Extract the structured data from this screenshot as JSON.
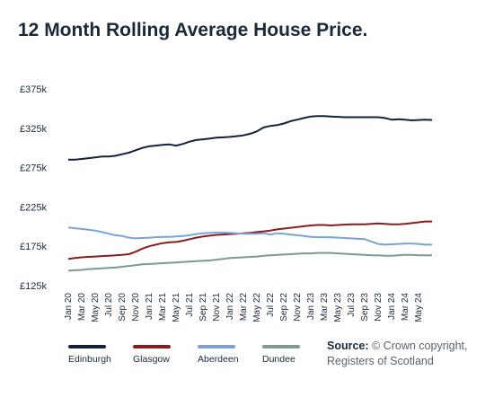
{
  "chart_data": {
    "type": "line",
    "title": "12 Month Rolling Average House Price.",
    "xlabel": "",
    "ylabel": "",
    "ylim": [
      125000,
      375000
    ],
    "yticks": [
      375000,
      325000,
      275000,
      225000,
      175000,
      125000
    ],
    "ytick_labels": [
      "£375k",
      "£325k",
      "£275k",
      "£225k",
      "£175k",
      "£125k"
    ],
    "x": [
      "Jan 20",
      "Feb 20",
      "Mar 20",
      "Apr 20",
      "May 20",
      "Jun 20",
      "Jul 20",
      "Aug 20",
      "Sep 20",
      "Oct 20",
      "Nov 20",
      "Dec 20",
      "Jan 21",
      "Feb 21",
      "Mar 21",
      "Apr 21",
      "May 21",
      "Jun 21",
      "Jul 21",
      "Aug 21",
      "Sep 21",
      "Oct 21",
      "Nov 21",
      "Dec 21",
      "Jan 22",
      "Feb 22",
      "Mar 22",
      "Apr 22",
      "May 22",
      "Jun 22",
      "Jul 22",
      "Aug 22",
      "Sep 22",
      "Oct 22",
      "Nov 22",
      "Dec 22",
      "Jan 23",
      "Feb 23",
      "Mar 23",
      "Apr 23",
      "May 23",
      "Jun 23",
      "Jul 23",
      "Aug 23",
      "Sep 23",
      "Oct 23",
      "Nov 23",
      "Dec 23",
      "Jan 24",
      "Feb 24",
      "Mar 24",
      "Apr 24",
      "May 24",
      "Jun 24",
      "Jul 24"
    ],
    "xtick_labels": [
      "Jan 20",
      "Mar 20",
      "May 20",
      "Jul 20",
      "Sep 20",
      "Nov 20",
      "Jan 21",
      "Mar 21",
      "May 21",
      "Jul 21",
      "Sep 21",
      "Nov 21",
      "Jan 22",
      "Mar 22",
      "May 22",
      "Jul 22",
      "Sep 22",
      "Nov 22",
      "Jan 23",
      "Mar 23",
      "May 23",
      "Jul 23",
      "Sep 23",
      "Nov 23",
      "Jan 24",
      "Mar 24",
      "May 24"
    ],
    "grid": false,
    "legend_position": "bottom-left",
    "series": [
      {
        "name": "Edinburgh",
        "color": "#14213d",
        "values": [
          285000,
          285000,
          286000,
          287000,
          288000,
          289000,
          289000,
          290000,
          292000,
          294000,
          297000,
          300000,
          302000,
          303000,
          304000,
          304500,
          303000,
          305000,
          308000,
          310000,
          311000,
          312000,
          313000,
          313500,
          314000,
          315000,
          316000,
          318000,
          321000,
          326000,
          328000,
          329000,
          331000,
          334000,
          336000,
          338000,
          340000,
          340500,
          340500,
          340000,
          339500,
          339000,
          339000,
          339000,
          339000,
          339000,
          339000,
          338000,
          336000,
          336500,
          336000,
          335000,
          335500,
          336000,
          335500
        ]
      },
      {
        "name": "Glasgow",
        "color": "#8b1c1c",
        "values": [
          159000,
          160000,
          161000,
          161500,
          162000,
          162500,
          163000,
          163500,
          164000,
          165000,
          168000,
          172000,
          175000,
          177000,
          179000,
          180000,
          180500,
          182000,
          184000,
          186000,
          187500,
          188500,
          189500,
          190000,
          190500,
          191000,
          191500,
          192000,
          193000,
          194000,
          195000,
          196500,
          197500,
          198500,
          199500,
          200500,
          201500,
          202000,
          202000,
          201500,
          202000,
          202500,
          203000,
          203000,
          203000,
          203500,
          204000,
          203500,
          203000,
          203000,
          203500,
          204500,
          205500,
          206500,
          206500
        ]
      },
      {
        "name": "Aberdeen",
        "color": "#7aa3d8",
        "values": [
          199000,
          198000,
          197000,
          196000,
          195000,
          193000,
          191000,
          189000,
          188000,
          186000,
          185000,
          185500,
          186000,
          186500,
          187000,
          187000,
          187500,
          188000,
          189000,
          190500,
          191500,
          192000,
          192500,
          192500,
          192000,
          191500,
          191000,
          191000,
          191000,
          191500,
          190000,
          191500,
          191000,
          190000,
          189000,
          188000,
          187000,
          186500,
          186500,
          186500,
          186000,
          185500,
          185000,
          184500,
          184000,
          181000,
          178000,
          177000,
          177500,
          178000,
          178500,
          178500,
          178000,
          177000,
          177000
        ]
      },
      {
        "name": "Dundee",
        "color": "#7d9b8c",
        "values": [
          144000,
          144500,
          145000,
          146000,
          146500,
          147000,
          147500,
          148000,
          149000,
          150000,
          151000,
          152000,
          152500,
          153000,
          153500,
          154000,
          154500,
          155000,
          155500,
          156000,
          156500,
          157000,
          158000,
          159000,
          160000,
          160500,
          161000,
          161500,
          162000,
          163000,
          163500,
          164000,
          164500,
          165000,
          165500,
          166000,
          166000,
          166500,
          166500,
          166500,
          166000,
          165500,
          165000,
          164500,
          164000,
          163500,
          163500,
          163000,
          163000,
          163500,
          164000,
          164000,
          163500,
          163500,
          163500
        ]
      }
    ]
  },
  "legend": {
    "items": [
      {
        "label": "Edinburgh",
        "color": "#14213d"
      },
      {
        "label": "Glasgow",
        "color": "#8b1c1c"
      },
      {
        "label": "Aberdeen",
        "color": "#7aa3d8"
      },
      {
        "label": "Dundee",
        "color": "#7d9b8c"
      }
    ]
  },
  "source": {
    "label": "Source:",
    "line1": "© Crown copyright,",
    "line2": "Registers of Scotland"
  }
}
